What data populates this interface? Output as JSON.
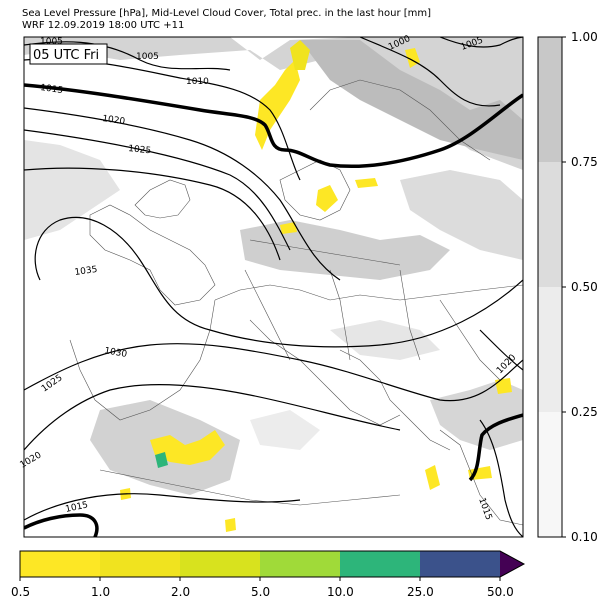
{
  "title_line1": "Sea Level Pressure [hPa], Mid-Level Cloud Cover, Total prec. in the last hour [mm]",
  "title_line2": "WRF 12.09.2019 18:00 UTC +11",
  "time_label": "05 UTC Fri",
  "isobar_labels": [
    "1005",
    "1005",
    "1000",
    "1005",
    "1010",
    "1015",
    "1020",
    "1025",
    "1035",
    "1030",
    "1025",
    "1020",
    "1015",
    "1020",
    "1015"
  ],
  "cloud_colorbar": {
    "ticks": [
      "1.00",
      "0.75",
      "0.50",
      "0.25",
      "0.10"
    ],
    "colors": [
      "#c8c8c8",
      "#dcdcdc",
      "#ececec",
      "#f7f7f7"
    ]
  },
  "precip_colorbar": {
    "ticks": [
      "0.5",
      "1.0",
      "2.0",
      "5.0",
      "10.0",
      "25.0",
      "50.0"
    ],
    "colors": [
      "#fde725",
      "#f0e31f",
      "#d8e21e",
      "#a0da39",
      "#2db57a",
      "#3b528b",
      "#440154"
    ]
  }
}
